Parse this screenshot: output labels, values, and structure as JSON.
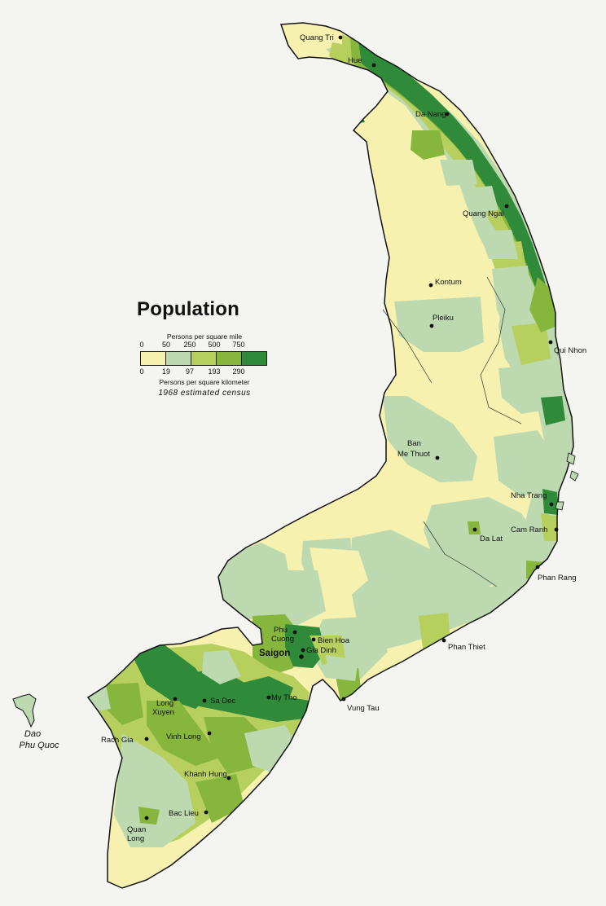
{
  "legend": {
    "title": "Population",
    "unit_mile": "Persons per square mile",
    "unit_km": "Persons per square kilometer",
    "ticks_mile": [
      "0",
      "50",
      "250",
      "500",
      "750"
    ],
    "ticks_km": [
      "0",
      "19",
      "97",
      "193",
      "290"
    ],
    "source": "1968 estimated census",
    "colors": [
      "#f7f1b0",
      "#bcd9b0",
      "#b7cf5c",
      "#87b63c",
      "#2f8a3a"
    ]
  },
  "map": {
    "sea_color": "#f4f4f1",
    "cities": [
      {
        "id": "quang-tri",
        "name": "Quang Tri"
      },
      {
        "id": "hue",
        "name": "Hue"
      },
      {
        "id": "da-nang",
        "name": "Da Nang"
      },
      {
        "id": "quang-ngai",
        "name": "Quang Ngai"
      },
      {
        "id": "kontum",
        "name": "Kontum"
      },
      {
        "id": "pleiku",
        "name": "Pleiku"
      },
      {
        "id": "qui-nhon",
        "name": "Qui Nhon"
      },
      {
        "id": "ban-me-thuot-1",
        "name": "Ban"
      },
      {
        "id": "ban-me-thuot-2",
        "name": "Me Thuot"
      },
      {
        "id": "nha-trang",
        "name": "Nha Trang"
      },
      {
        "id": "cam-ranh",
        "name": "Cam Ranh"
      },
      {
        "id": "da-lat",
        "name": "Da Lat"
      },
      {
        "id": "phan-rang",
        "name": "Phan Rang"
      },
      {
        "id": "phan-thiet",
        "name": "Phan Thiet"
      },
      {
        "id": "phu-cuong-1",
        "name": "Phu"
      },
      {
        "id": "phu-cuong-2",
        "name": "Cuong"
      },
      {
        "id": "bien-hoa",
        "name": "Bien Hoa"
      },
      {
        "id": "gia-dinh",
        "name": "Gia Dinh"
      },
      {
        "id": "saigon",
        "name": "Saigon"
      },
      {
        "id": "vung-tau",
        "name": "Vung Tau"
      },
      {
        "id": "my-tho",
        "name": "My Tho"
      },
      {
        "id": "sa-dec",
        "name": "Sa Dec"
      },
      {
        "id": "long-xuyen-1",
        "name": "Long"
      },
      {
        "id": "long-xuyen-2",
        "name": "Xuyen"
      },
      {
        "id": "vinh-long",
        "name": "Vinh Long"
      },
      {
        "id": "rach-gia",
        "name": "Rach Gia"
      },
      {
        "id": "khanh-hung",
        "name": "Khanh Hung"
      },
      {
        "id": "bac-lieu",
        "name": "Bac Lieu"
      },
      {
        "id": "quan-long-1",
        "name": "Quan"
      },
      {
        "id": "quan-long-2",
        "name": "Long"
      }
    ],
    "island": {
      "line1": "Dao",
      "line2": "Phu Quoc"
    }
  }
}
